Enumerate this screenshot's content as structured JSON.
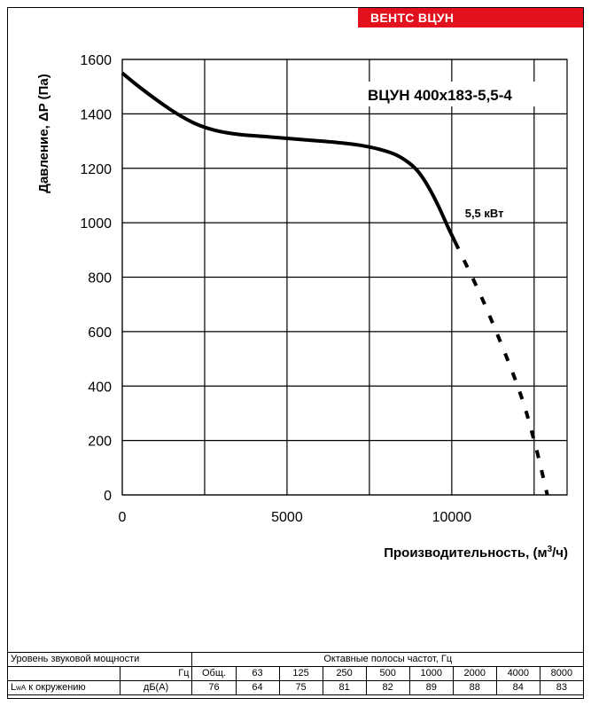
{
  "brand": {
    "label": "ВЕНТС ВЦУН",
    "color": "#e3101e"
  },
  "chart_data": {
    "type": "line",
    "title": "ВЦУН 400x183-5,5-4",
    "xlabel": "Производительность, (м",
    "xlabel_sup": "3",
    "xlabel_tail": "/ч)",
    "ylabel": "Давление, ΔP (Па)",
    "xlim": [
      0,
      13500
    ],
    "ylim": [
      0,
      1600
    ],
    "x_ticks": [
      0,
      5000,
      10000
    ],
    "x_tick_labels": [
      "0",
      "5000",
      "10000"
    ],
    "y_ticks": [
      0,
      200,
      400,
      600,
      800,
      1000,
      1200,
      1400,
      1600
    ],
    "y_tick_labels": [
      "0",
      "200",
      "400",
      "600",
      "800",
      "1000",
      "1200",
      "1400",
      "1600"
    ],
    "x_grid": [
      0,
      2500,
      5000,
      7500,
      10000,
      12500
    ],
    "grid": true,
    "series": [
      {
        "name": "",
        "style": "solid",
        "color": "#000000",
        "x": [
          0,
          400,
          1000,
          1600,
          2200,
          2800,
          3500,
          4500,
          5500,
          6500,
          7200,
          7800,
          8300,
          8700,
          9000,
          9300,
          9600,
          9900,
          10100
        ],
        "y": [
          1550,
          1510,
          1455,
          1405,
          1365,
          1340,
          1325,
          1315,
          1305,
          1295,
          1285,
          1270,
          1250,
          1220,
          1185,
          1130,
          1060,
          980,
          930
        ]
      },
      {
        "name": "",
        "style": "dashed",
        "color": "#000000",
        "x": [
          10100,
          11000,
          12000,
          12500,
          12900
        ],
        "y": [
          930,
          700,
          400,
          200,
          0
        ]
      }
    ],
    "annotations": [
      {
        "text": "5,5 кВт",
        "x": 10400,
        "y": 1020
      }
    ]
  },
  "sound_table": {
    "header_left": "Уровень звуковой мощности",
    "header_right": "Октавные полосы частот, Гц",
    "unit_row_label": "Гц",
    "freq_row": [
      "Общ.",
      "63",
      "125",
      "250",
      "500",
      "1000",
      "2000",
      "4000",
      "8000"
    ],
    "row_label_main": "L",
    "row_label_sub": "wA",
    "row_label_tail": " к окружению",
    "row_unit": "дБ(А)",
    "values": [
      "76",
      "64",
      "75",
      "81",
      "82",
      "89",
      "88",
      "84",
      "83"
    ]
  }
}
